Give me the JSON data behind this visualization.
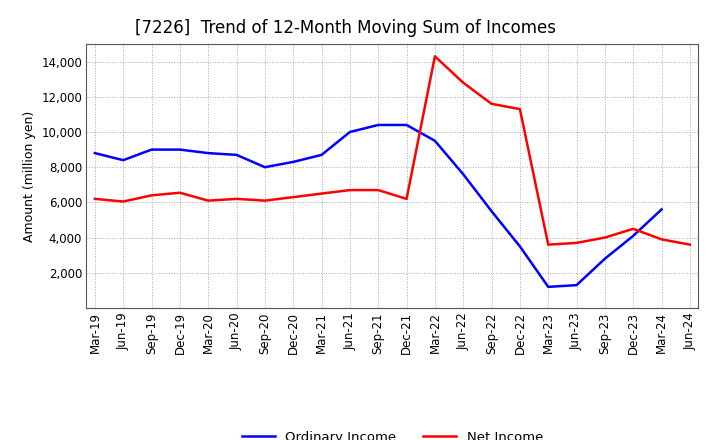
{
  "title": "[7226]  Trend of 12-Month Moving Sum of Incomes",
  "ylabel": "Amount (million yen)",
  "x_labels": [
    "Mar-19",
    "Jun-19",
    "Sep-19",
    "Dec-19",
    "Mar-20",
    "Jun-20",
    "Sep-20",
    "Dec-20",
    "Mar-21",
    "Jun-21",
    "Sep-21",
    "Dec-21",
    "Mar-22",
    "Jun-22",
    "Sep-22",
    "Dec-22",
    "Mar-23",
    "Jun-23",
    "Sep-23",
    "Dec-23",
    "Mar-24",
    "Jun-24"
  ],
  "ordinary_income": [
    8800,
    8400,
    9000,
    9000,
    8800,
    8700,
    8000,
    8300,
    8700,
    10000,
    10400,
    10400,
    9500,
    7600,
    5500,
    3500,
    1200,
    1300,
    2800,
    4100,
    5600,
    null
  ],
  "net_income": [
    6200,
    6050,
    6400,
    6550,
    6100,
    6200,
    6100,
    6300,
    6500,
    6700,
    6700,
    6200,
    14300,
    12800,
    11600,
    11300,
    3600,
    3700,
    4000,
    4500,
    3900,
    3600
  ],
  "ordinary_income_color": "#0000ff",
  "net_income_color": "#ff0000",
  "background_color": "#ffffff",
  "grid_color": "#aaaaaa",
  "ylim": [
    0,
    15000
  ],
  "yticks": [
    2000,
    4000,
    6000,
    8000,
    10000,
    12000,
    14000
  ],
  "legend_labels": [
    "Ordinary Income",
    "Net Income"
  ],
  "title_fontsize": 12,
  "axis_fontsize": 9,
  "tick_fontsize": 8.5
}
